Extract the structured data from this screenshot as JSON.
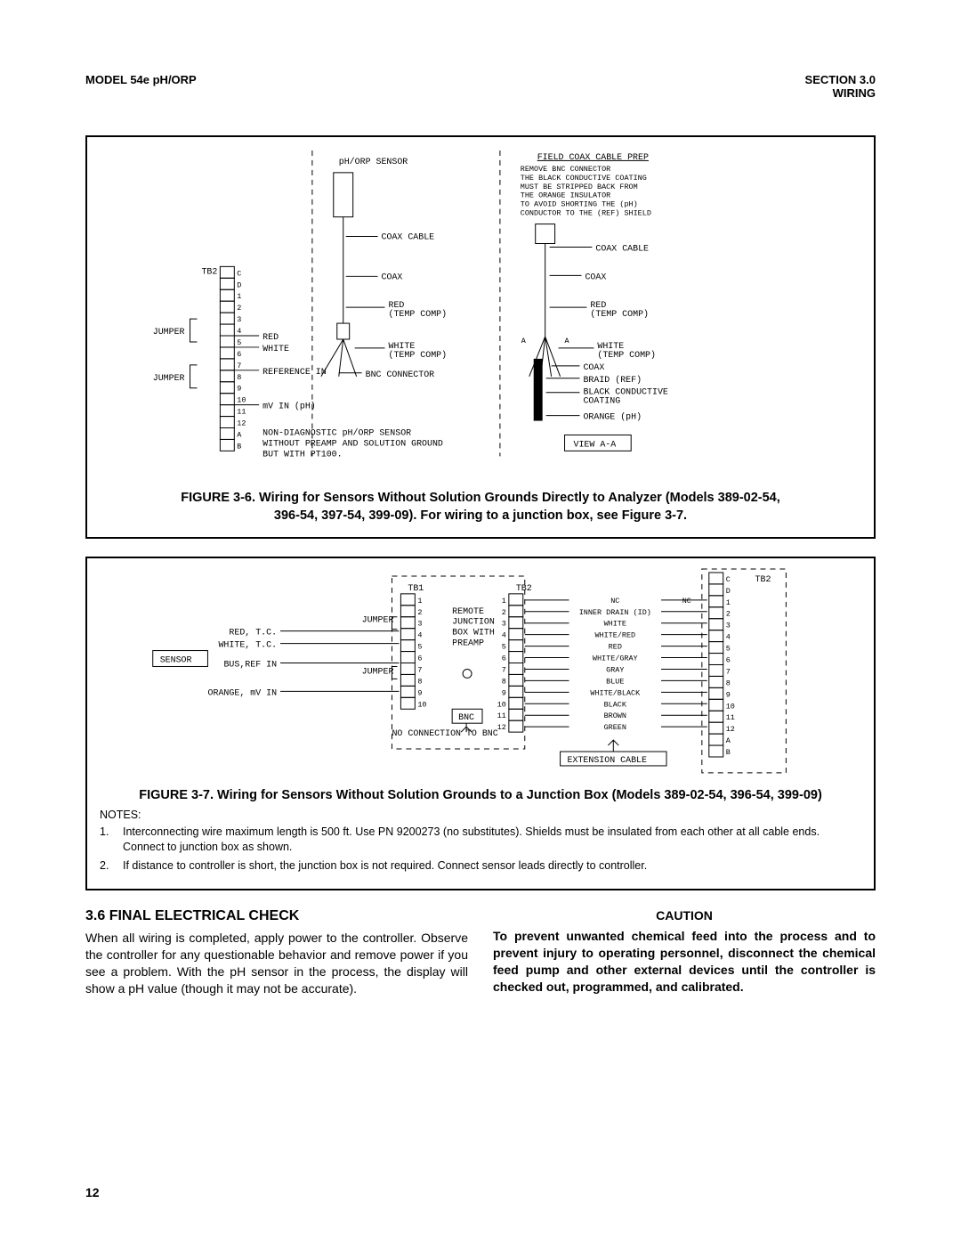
{
  "header": {
    "left": "MODEL 54e pH/ORP",
    "right_line1": "SECTION 3.0",
    "right_line2": "WIRING"
  },
  "figure1": {
    "caption_line1": "FIGURE 3-6. Wiring for Sensors Without Solution Grounds Directly to Analyzer (Models 389-02-54,",
    "caption_line2": "396-54, 397-54, 399-09). For wiring to a junction box, see Figure 3-7.",
    "labels": {
      "sensor": "pH/ORP SENSOR",
      "coax_cable": "COAX CABLE",
      "coax": "COAX",
      "red_temp": "RED\n(TEMP COMP)",
      "white_temp": "WHITE\n(TEMP COMP)",
      "bnc": "BNC CONNECTOR",
      "tb2": "TB2",
      "jumper": "JUMPER",
      "red": "RED",
      "white": "WHITE",
      "ref_in": "REFERENCE IN",
      "mv_in": "mV IN (pH)",
      "note": "NON-DIAGNOSTIC pH/ORP SENSOR\nWITHOUT PREAMP AND SOLUTION GROUND\nBUT WITH PT100.",
      "prep_title": "FIELD COAX CABLE PREP",
      "prep_text": "REMOVE BNC CONNECTOR\nTHE BLACK CONDUCTIVE COATING\nMUST BE STRIPPED BACK FROM\nTHE ORANGE INSULATOR\nTO AVOID SHORTING THE (pH)\nCONDUCTOR TO THE (REF) SHIELD",
      "braid": "BRAID (REF)",
      "black_cond": "BLACK CONDUCTIVE\nCOATING",
      "orange": "ORANGE (pH)",
      "view": "VIEW A-A"
    },
    "tb_rows": [
      "C",
      "D",
      "1",
      "2",
      "3",
      "4",
      "5",
      "6",
      "7",
      "8",
      "9",
      "10",
      "11",
      "12",
      "A",
      "B"
    ]
  },
  "figure2": {
    "caption": "FIGURE 3-7. Wiring for Sensors Without Solution Grounds to a Junction Box (Models 389-02-54, 396-54, 399-09)",
    "notes_label": "NOTES:",
    "notes": [
      "Interconnecting wire maximum length is 500 ft. Use PN 9200273 (no substitutes). Shields must be insulated from each other at all cable ends.  Connect to junction box as shown.",
      "If distance to controller is short, the junction box is not required. Connect sensor leads directly to controller."
    ],
    "labels": {
      "sensor": "SENSOR",
      "red_tc": "RED, T.C.",
      "white_tc": "WHITE, T.C.",
      "bus_ref": "BUS,REF IN",
      "orange_mv": "ORANGE, mV IN",
      "jumper": "JUMPER",
      "tb1": "TB1",
      "tb2": "TB2",
      "remote_jb": "REMOTE\nJUNCTION\nBOX WITH\nPREAMP",
      "bnc": "BNC",
      "no_conn": "NO CONNECTION TO BNC",
      "nc": "NC",
      "inner_drain": "INNER DRAIN (ID)",
      "white": "WHITE",
      "white_red": "WHITE/RED",
      "red": "RED",
      "white_gray": "WHITE/GRAY",
      "gray": "GRAY",
      "blue": "BLUE",
      "white_black": "WHITE/BLACK",
      "black": "BLACK",
      "brown": "BROWN",
      "green": "GREEN",
      "ext_cable": "EXTENSION CABLE"
    }
  },
  "section": {
    "heading": "3.6 FINAL ELECTRICAL CHECK",
    "body": "When all wiring is completed, apply power to the controller. Observe the controller for any questionable behavior and remove power if you see a problem. With the pH sensor in the process, the display will show a pH value (though it may not be accurate).",
    "caution_heading": "CAUTION",
    "caution_body": "To prevent unwanted chemical feed into the process and to prevent injury to operating personnel, disconnect the chemical feed pump and other external devices until the controller is checked out, programmed, and calibrated."
  },
  "page_number": "12"
}
